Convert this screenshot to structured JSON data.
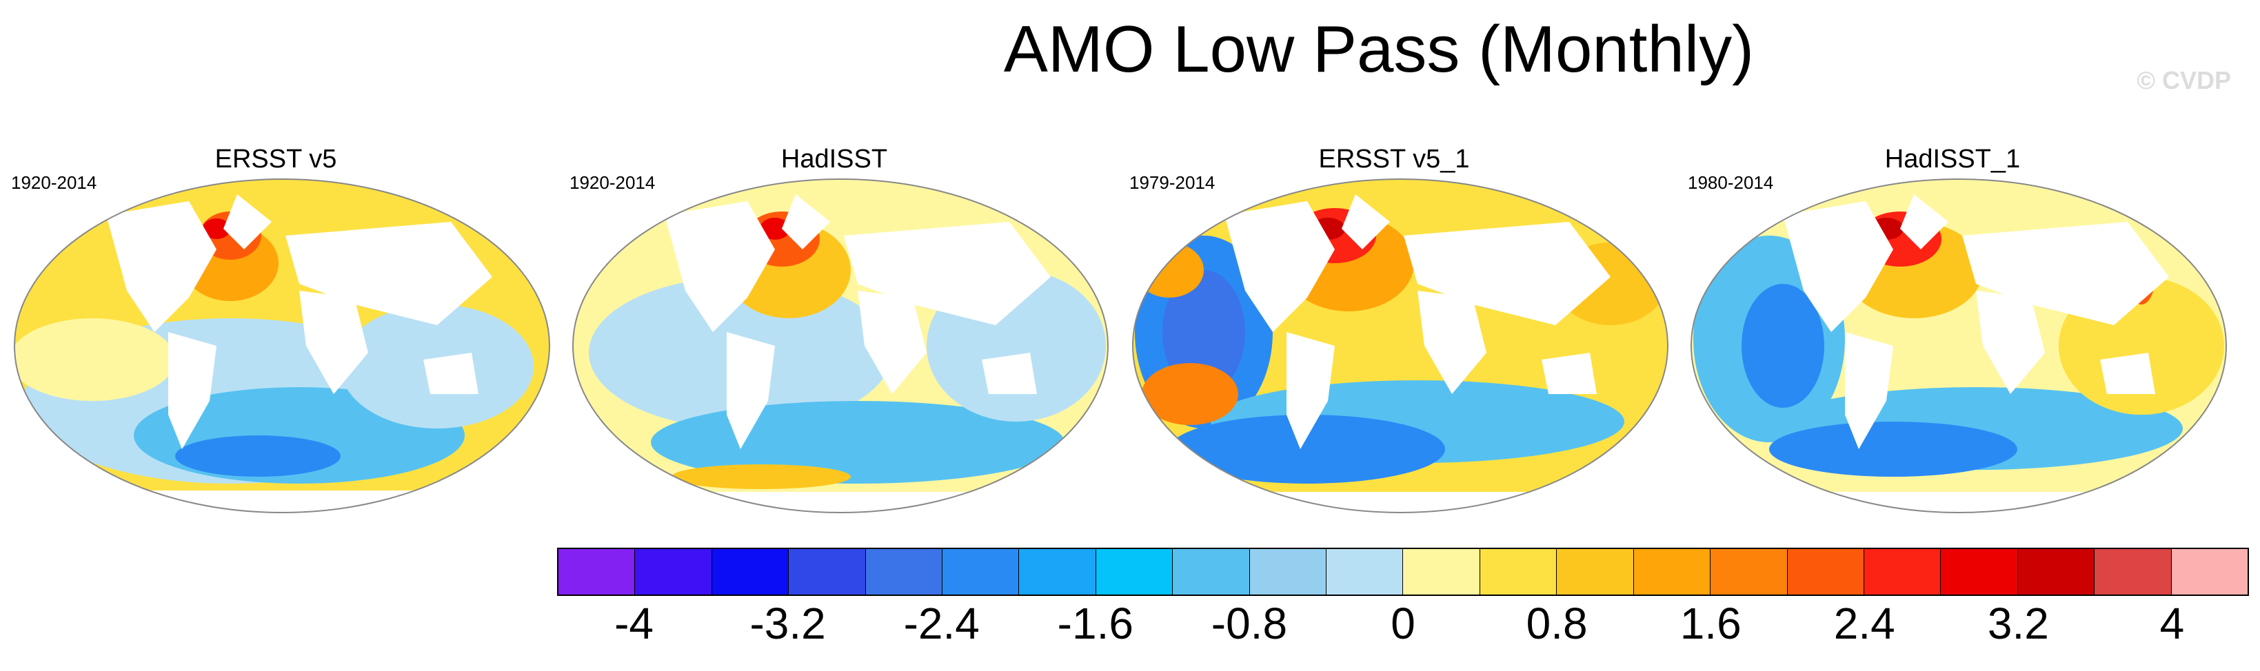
{
  "figure": {
    "title": "AMO Low Pass (Monthly)",
    "credit": "© CVDP"
  },
  "panels": [
    {
      "name": "ERSST v5",
      "period": "1920-2014"
    },
    {
      "name": "HadISST",
      "period": "1920-2014"
    },
    {
      "name": "ERSST v5_1",
      "period": "1979-2014"
    },
    {
      "name": "HadISST_1",
      "period": "1980-2014"
    }
  ],
  "colorbar": {
    "colors": [
      "#8221f2",
      "#3d10f5",
      "#0b0df6",
      "#3048e8",
      "#3a74e8",
      "#2a8af4",
      "#19a5f8",
      "#04c3fa",
      "#56c1f0",
      "#94cff0",
      "#b8e0f5",
      "#fff7a0",
      "#fde142",
      "#fdc61e",
      "#fea50a",
      "#fd820a",
      "#fc5a0a",
      "#fc2214",
      "#ec0000",
      "#cc0000",
      "#dd4444",
      "#fdb0b0"
    ],
    "tick_labels": [
      "-4",
      "-3.2",
      "-2.4",
      "-1.6",
      "-0.8",
      "0",
      "0.8",
      "1.6",
      "2.4",
      "3.2",
      "4"
    ]
  }
}
